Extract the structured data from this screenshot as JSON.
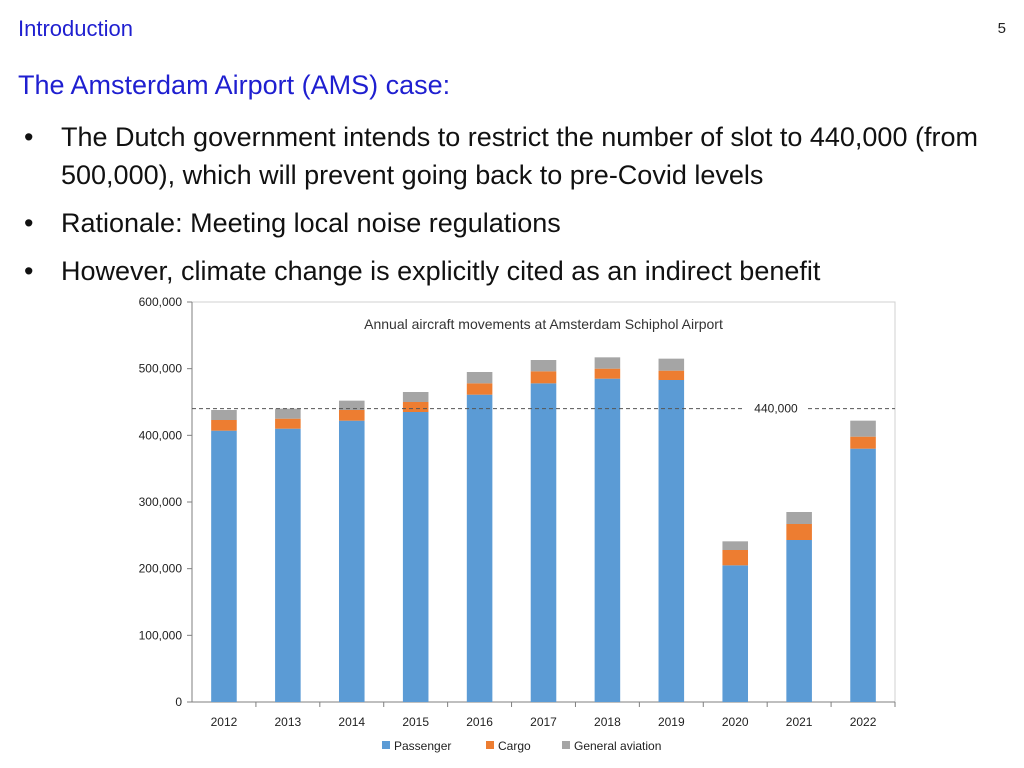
{
  "header": {
    "section": "Introduction",
    "page_number": "5"
  },
  "slide": {
    "heading": "The Amsterdam Airport (AMS) case:",
    "bullets": [
      "The Dutch government intends to restrict the number of slot to 440,000 (from 500,000), which will prevent going back to pre-Covid levels",
      "Rationale: Meeting local noise regulations",
      "However, climate change is explicitly cited as an indirect benefit"
    ],
    "bullet_symbol": "•"
  },
  "chart_data": {
    "type": "bar",
    "stacked": true,
    "title": "Annual aircraft movements at Amsterdam Schiphol Airport",
    "categories": [
      "2012",
      "2013",
      "2014",
      "2015",
      "2016",
      "2017",
      "2018",
      "2019",
      "2020",
      "2021",
      "2022"
    ],
    "series": [
      {
        "name": "Passenger",
        "color": "#5b9bd5",
        "values": [
          407000,
          410000,
          422000,
          435000,
          461000,
          478000,
          485000,
          483000,
          205000,
          243000,
          380000
        ]
      },
      {
        "name": "Cargo",
        "color": "#ed7d31",
        "values": [
          16000,
          15000,
          16000,
          15000,
          17000,
          18000,
          15000,
          14000,
          23000,
          24000,
          18000
        ]
      },
      {
        "name": "General aviation",
        "color": "#a5a5a5",
        "values": [
          15000,
          15000,
          14000,
          15000,
          17000,
          17000,
          17000,
          18000,
          13000,
          18000,
          24000
        ]
      }
    ],
    "ylim": [
      0,
      600000
    ],
    "yticks": [
      0,
      100000,
      200000,
      300000,
      400000,
      500000,
      600000
    ],
    "ytick_labels": [
      "0",
      "100,000",
      "200,000",
      "300,000",
      "400,000",
      "500,000",
      "600,000"
    ],
    "reference_line": {
      "value": 440000,
      "label": "440,000",
      "style": "dashed"
    },
    "grid": false,
    "legend_position": "bottom"
  }
}
